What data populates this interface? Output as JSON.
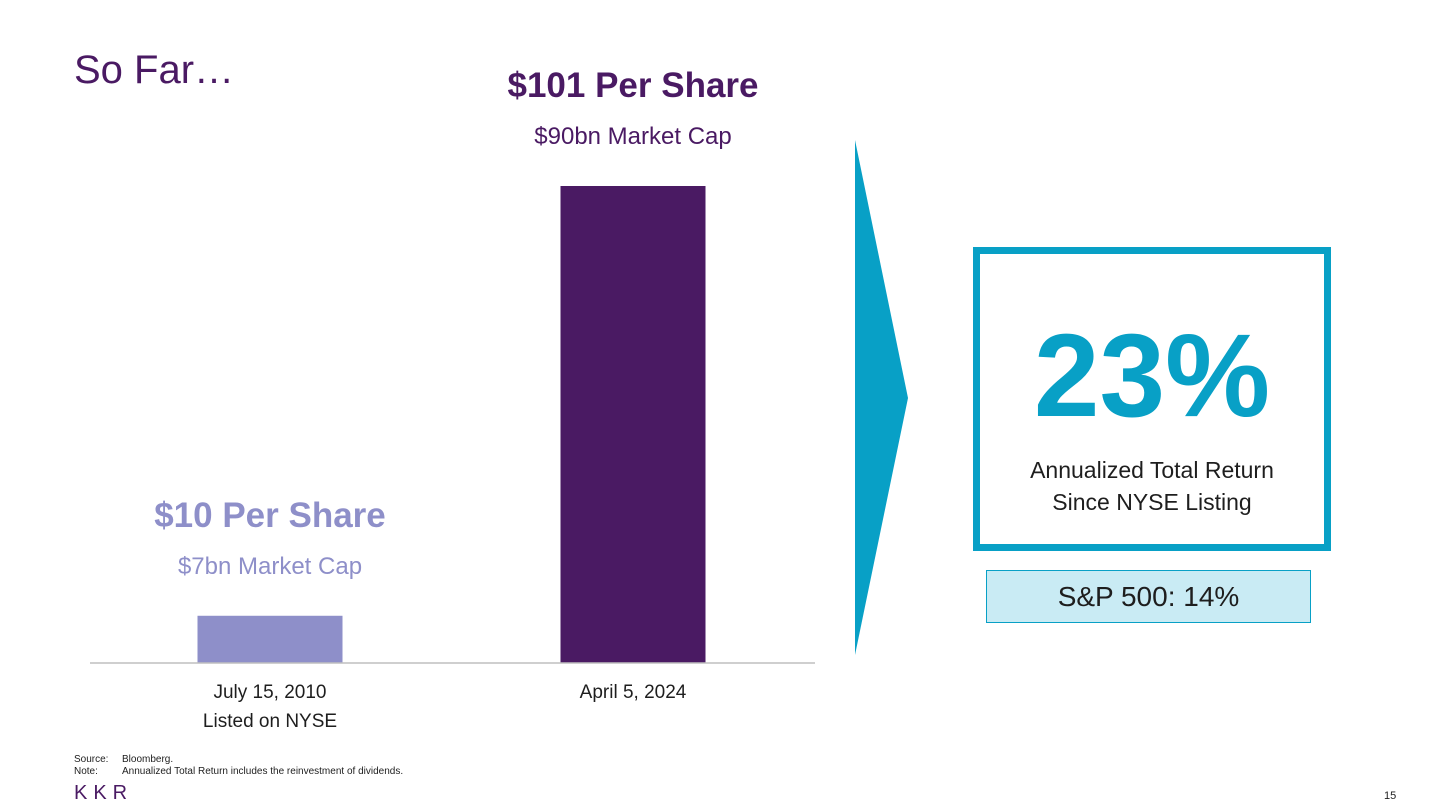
{
  "slide": {
    "title": "So Far…",
    "page_number": "15",
    "logo_text": "KKR",
    "colors": {
      "title": "#4a1a63",
      "bar_2010": "#8e8fc9",
      "bar_2024": "#4a1a63",
      "accent": "#08a0c6",
      "sp_fill": "#c9ebf4"
    }
  },
  "chart_data": {
    "type": "bar",
    "categories": [
      "July 15, 2010",
      "April 5, 2024"
    ],
    "category_sublabels": [
      "Listed on NYSE",
      ""
    ],
    "values": [
      10,
      101
    ],
    "units": "$ per share",
    "data_labels": [
      "$10 Per Share",
      "$101 Per Share"
    ],
    "data_sublabels": [
      "$7bn Market Cap",
      "$90bn Market Cap"
    ],
    "bar_colors": [
      "#8e8fc9",
      "#4a1a63"
    ],
    "ylim": [
      0,
      101
    ],
    "grid": false,
    "title": "",
    "xlabel": "",
    "ylabel": ""
  },
  "highlight": {
    "value": "23%",
    "caption_line1": "Annualized Total Return",
    "caption_line2": "Since NYSE Listing",
    "benchmark": "S&P 500: 14%",
    "icon": "chevron-arrow-icon"
  },
  "footnotes": [
    {
      "key": "Source:",
      "text": "Bloomberg."
    },
    {
      "key": "Note:",
      "text": "Annualized Total Return includes the reinvestment of dividends."
    }
  ]
}
